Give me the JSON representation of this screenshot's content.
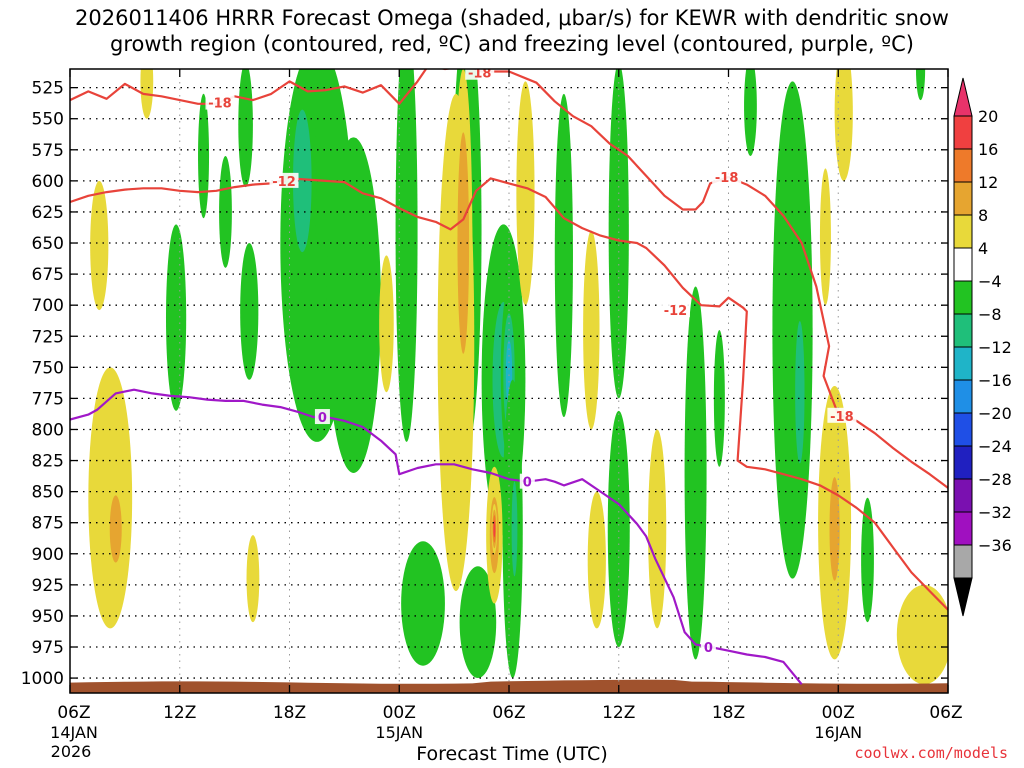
{
  "header": {
    "title_line1": "2026011406 HRRR Forecast Omega (shaded, μbar/s) for KEWR with dendritic snow",
    "title_line2": "growth region (contoured, red, ºC) and freezing level (contoured, purple, ºC)"
  },
  "footer": {
    "xlabel": "Forecast Time (UTC)",
    "credit": "coolwx.com/models"
  },
  "chart_data": {
    "type": "heatmap",
    "title": "2026011406 HRRR Forecast Omega (shaded, μbar/s) for KEWR with dendritic snow growth region (contoured, red, ºC) and freezing level (contoured, purple, ºC)",
    "xlabel": "Forecast Time (UTC)",
    "ylabel": "",
    "xlim": [
      0,
      48
    ],
    "ylim": [
      1012,
      510
    ],
    "grid": true,
    "x_ticks": [
      {
        "hour": 0,
        "label": "06Z",
        "date": "14JAN",
        "year": "2026"
      },
      {
        "hour": 6,
        "label": "12Z"
      },
      {
        "hour": 12,
        "label": "18Z"
      },
      {
        "hour": 18,
        "label": "00Z",
        "date": "15JAN"
      },
      {
        "hour": 24,
        "label": "06Z"
      },
      {
        "hour": 30,
        "label": "12Z"
      },
      {
        "hour": 36,
        "label": "18Z"
      },
      {
        "hour": 42,
        "label": "00Z",
        "date": "16JAN"
      },
      {
        "hour": 48,
        "label": "06Z"
      }
    ],
    "y_ticks": [
      525,
      550,
      575,
      600,
      625,
      650,
      675,
      700,
      725,
      750,
      775,
      800,
      825,
      850,
      875,
      900,
      925,
      950,
      975,
      1000
    ],
    "colorbar": {
      "labels": [
        "20",
        "16",
        "12",
        "8",
        "4",
        "−4",
        "−8",
        "−12",
        "−16",
        "−20",
        "−24",
        "−28",
        "−32",
        "−36"
      ],
      "colors": [
        "#e8336a",
        "#f04040",
        "#ee7a2a",
        "#e6a530",
        "#e8d93a",
        "#ffffff",
        "#22c322",
        "#1fbf7a",
        "#1fb4c8",
        "#1f8fe6",
        "#1f4fe6",
        "#2020c0",
        "#7a10b0",
        "#a010c0",
        "#a8a8a8",
        "#000000"
      ]
    },
    "omega_blobs": [
      {
        "t": 1.6,
        "p": 652,
        "rt": 0.5,
        "rp": 52,
        "v": 5
      },
      {
        "t": 2.2,
        "p": 855,
        "rt": 1.2,
        "rp": 105,
        "v": 6
      },
      {
        "t": 2.5,
        "p": 880,
        "rt": 0.55,
        "rp": 45,
        "v": 10
      },
      {
        "t": 4.2,
        "p": 520,
        "rt": 0.35,
        "rp": 30,
        "v": 5
      },
      {
        "t": 5.8,
        "p": 710,
        "rt": 0.55,
        "rp": 75,
        "v": -6
      },
      {
        "t": 7.3,
        "p": 580,
        "rt": 0.3,
        "rp": 50,
        "v": -6
      },
      {
        "t": 8.5,
        "p": 625,
        "rt": 0.35,
        "rp": 45,
        "v": -6
      },
      {
        "t": 9.6,
        "p": 555,
        "rt": 0.4,
        "rp": 50,
        "v": -6
      },
      {
        "t": 9.8,
        "p": 705,
        "rt": 0.5,
        "rp": 55,
        "v": -6
      },
      {
        "t": 10.0,
        "p": 920,
        "rt": 0.35,
        "rp": 35,
        "v": 5
      },
      {
        "t": 13.5,
        "p": 650,
        "rt": 2.0,
        "rp": 160,
        "v": -7
      },
      {
        "t": 12.7,
        "p": 600,
        "rt": 0.8,
        "rp": 90,
        "v": -11
      },
      {
        "t": 15.5,
        "p": 700,
        "rt": 1.5,
        "rp": 135,
        "v": -6
      },
      {
        "t": 17.3,
        "p": 715,
        "rt": 0.4,
        "rp": 55,
        "v": 5
      },
      {
        "t": 18.4,
        "p": 640,
        "rt": 0.6,
        "rp": 170,
        "v": -6
      },
      {
        "t": 19.3,
        "p": 940,
        "rt": 1.2,
        "rp": 50,
        "v": -6
      },
      {
        "t": 21.7,
        "p": 640,
        "rt": 0.8,
        "rp": 175,
        "v": -7
      },
      {
        "t": 21.1,
        "p": 730,
        "rt": 1.0,
        "rp": 200,
        "v": 7
      },
      {
        "t": 21.5,
        "p": 650,
        "rt": 0.5,
        "rp": 140,
        "v": 11
      },
      {
        "t": 22.3,
        "p": 955,
        "rt": 1.0,
        "rp": 45,
        "v": -6
      },
      {
        "t": 23.7,
        "p": 760,
        "rt": 1.2,
        "rp": 125,
        "v": -8
      },
      {
        "t": 24.0,
        "p": 755,
        "rt": 0.45,
        "rp": 70,
        "v": -13
      },
      {
        "t": 24.2,
        "p": 880,
        "rt": 0.55,
        "rp": 120,
        "v": -7
      },
      {
        "t": 24.3,
        "p": 880,
        "rt": 0.25,
        "rp": 60,
        "v": -11
      },
      {
        "t": 23.2,
        "p": 885,
        "rt": 0.45,
        "rp": 55,
        "v": 9
      },
      {
        "t": 23.2,
        "p": 880,
        "rt": 0.15,
        "rp": 20,
        "v": 18
      },
      {
        "t": 24.9,
        "p": 610,
        "rt": 0.5,
        "rp": 90,
        "v": 6
      },
      {
        "t": 27.0,
        "p": 660,
        "rt": 0.5,
        "rp": 130,
        "v": -6
      },
      {
        "t": 28.5,
        "p": 720,
        "rt": 0.45,
        "rp": 80,
        "v": 5
      },
      {
        "t": 28.8,
        "p": 905,
        "rt": 0.5,
        "rp": 55,
        "v": 5
      },
      {
        "t": 30.0,
        "p": 880,
        "rt": 0.6,
        "rp": 95,
        "v": -6
      },
      {
        "t": 30.0,
        "p": 640,
        "rt": 0.55,
        "rp": 135,
        "v": -6
      },
      {
        "t": 32.1,
        "p": 880,
        "rt": 0.5,
        "rp": 80,
        "v": 5
      },
      {
        "t": 34.2,
        "p": 835,
        "rt": 0.6,
        "rp": 150,
        "v": -6
      },
      {
        "t": 35.5,
        "p": 775,
        "rt": 0.3,
        "rp": 55,
        "v": -6
      },
      {
        "t": 37.2,
        "p": 540,
        "rt": 0.35,
        "rp": 40,
        "v": -6
      },
      {
        "t": 39.5,
        "p": 720,
        "rt": 1.1,
        "rp": 200,
        "v": -6
      },
      {
        "t": 39.9,
        "p": 770,
        "rt": 0.4,
        "rp": 90,
        "v": -11
      },
      {
        "t": 41.8,
        "p": 875,
        "rt": 0.9,
        "rp": 110,
        "v": 5
      },
      {
        "t": 41.8,
        "p": 880,
        "rt": 0.5,
        "rp": 75,
        "v": 9
      },
      {
        "t": 42.3,
        "p": 545,
        "rt": 0.5,
        "rp": 55,
        "v": 5
      },
      {
        "t": 41.3,
        "p": 645,
        "rt": 0.3,
        "rp": 55,
        "v": 5
      },
      {
        "t": 43.6,
        "p": 905,
        "rt": 0.35,
        "rp": 50,
        "v": -6
      },
      {
        "t": 46.7,
        "p": 965,
        "rt": 1.5,
        "rp": 40,
        "v": 5
      },
      {
        "t": 46.5,
        "p": 510,
        "rt": 0.25,
        "rp": 25,
        "v": -6
      }
    ],
    "contours": [
      {
        "label": "-18",
        "color": "#e8433a",
        "points": [
          [
            0,
            535
          ],
          [
            1,
            528
          ],
          [
            2,
            534
          ],
          [
            3,
            522
          ],
          [
            4,
            530
          ],
          [
            5,
            532
          ],
          [
            6,
            535
          ],
          [
            7,
            538
          ],
          [
            8,
            538
          ],
          [
            9,
            532
          ],
          [
            10,
            535
          ],
          [
            11,
            530
          ],
          [
            12,
            520
          ],
          [
            13,
            528
          ],
          [
            14,
            527
          ],
          [
            15,
            524
          ],
          [
            16,
            529
          ],
          [
            17,
            523
          ],
          [
            18,
            538
          ],
          [
            19,
            520
          ],
          [
            19.6,
            507
          ],
          [
            20.5,
            510
          ],
          [
            21.5,
            508
          ],
          [
            22.5,
            512
          ],
          [
            24,
            512
          ],
          [
            25.5,
            521
          ],
          [
            26.5,
            536
          ],
          [
            27.5,
            548
          ],
          [
            28.5,
            556
          ],
          [
            29.5,
            570
          ],
          [
            30.5,
            580
          ],
          [
            31.5,
            596
          ],
          [
            32.5,
            612
          ],
          [
            33.5,
            623
          ],
          [
            34.2,
            623
          ],
          [
            34.6,
            617
          ],
          [
            35,
            602
          ],
          [
            36,
            597
          ],
          [
            37,
            603
          ],
          [
            38,
            612
          ],
          [
            39,
            628
          ],
          [
            40,
            650
          ],
          [
            40.8,
            685
          ],
          [
            41.5,
            733
          ],
          [
            41.2,
            757
          ],
          [
            42,
            788
          ],
          [
            43,
            793
          ],
          [
            44,
            803
          ],
          [
            45,
            815
          ],
          [
            46,
            826
          ],
          [
            47,
            836
          ],
          [
            48,
            847
          ]
        ],
        "label_points": [
          [
            8.2,
            537
          ],
          [
            22.4,
            513
          ],
          [
            35.9,
            597
          ],
          [
            42.2,
            789
          ]
        ]
      },
      {
        "label": "-12",
        "color": "#e8433a",
        "points": [
          [
            0,
            617
          ],
          [
            1,
            612
          ],
          [
            2,
            609
          ],
          [
            3,
            607
          ],
          [
            4,
            606
          ],
          [
            5,
            606
          ],
          [
            6,
            608
          ],
          [
            7,
            609
          ],
          [
            8,
            608
          ],
          [
            9,
            605
          ],
          [
            10,
            603
          ],
          [
            11,
            602
          ],
          [
            12,
            598
          ],
          [
            13,
            599
          ],
          [
            14,
            600
          ],
          [
            15,
            601
          ],
          [
            16,
            610
          ],
          [
            17,
            614
          ],
          [
            18,
            622
          ],
          [
            19,
            629
          ],
          [
            20,
            633
          ],
          [
            20.8,
            639
          ],
          [
            21.5,
            631
          ],
          [
            22.2,
            608
          ],
          [
            23,
            598
          ],
          [
            24,
            602
          ],
          [
            25,
            606
          ],
          [
            26,
            613
          ],
          [
            27,
            630
          ],
          [
            28,
            638
          ],
          [
            29,
            644
          ],
          [
            30,
            648
          ],
          [
            31,
            650
          ],
          [
            31.5,
            654
          ],
          [
            32.5,
            668
          ],
          [
            33.5,
            686
          ],
          [
            34.5,
            700
          ],
          [
            35.5,
            701
          ],
          [
            36,
            694
          ],
          [
            36.8,
            702
          ],
          [
            37,
            705
          ],
          [
            36.8,
            760
          ],
          [
            36.5,
            825
          ],
          [
            37,
            830
          ],
          [
            38,
            832
          ],
          [
            39,
            836
          ],
          [
            40,
            840
          ],
          [
            41,
            845
          ],
          [
            42,
            853
          ],
          [
            43,
            863
          ],
          [
            44,
            875
          ],
          [
            45,
            895
          ],
          [
            46,
            915
          ],
          [
            47,
            930
          ],
          [
            48,
            945
          ]
        ],
        "label_points": [
          [
            11.7,
            600
          ],
          [
            33.1,
            704
          ]
        ]
      },
      {
        "label": "0",
        "color": "#a018c8",
        "points": [
          [
            0,
            792
          ],
          [
            1,
            788
          ],
          [
            1.5,
            784
          ],
          [
            2.5,
            771
          ],
          [
            3.5,
            768
          ],
          [
            4.5,
            771
          ],
          [
            5.5,
            773
          ],
          [
            6.5,
            774
          ],
          [
            7.5,
            776
          ],
          [
            8.5,
            777
          ],
          [
            9.5,
            777
          ],
          [
            10.5,
            780
          ],
          [
            11.5,
            782
          ],
          [
            12.5,
            786
          ],
          [
            13.3,
            790
          ],
          [
            14,
            790
          ],
          [
            15,
            793
          ],
          [
            16,
            798
          ],
          [
            17,
            809
          ],
          [
            17.8,
            820
          ],
          [
            18,
            836
          ],
          [
            19,
            831
          ],
          [
            20,
            828
          ],
          [
            21,
            828
          ],
          [
            22,
            832
          ],
          [
            23,
            835
          ],
          [
            24,
            840
          ],
          [
            25,
            842
          ],
          [
            26,
            840
          ],
          [
            26.5,
            842
          ],
          [
            27,
            845
          ],
          [
            28,
            840
          ],
          [
            29,
            850
          ],
          [
            30,
            860
          ],
          [
            31,
            876
          ],
          [
            31.5,
            886
          ],
          [
            32,
            904
          ],
          [
            33,
            935
          ],
          [
            33.6,
            963
          ],
          [
            34.2,
            973
          ],
          [
            35,
            975
          ],
          [
            36,
            978
          ],
          [
            37,
            981
          ],
          [
            38,
            983
          ],
          [
            39,
            987
          ],
          [
            40,
            1005
          ]
        ],
        "label_points": [
          [
            13.8,
            790
          ],
          [
            25,
            842
          ],
          [
            34.9,
            975
          ]
        ]
      }
    ]
  }
}
